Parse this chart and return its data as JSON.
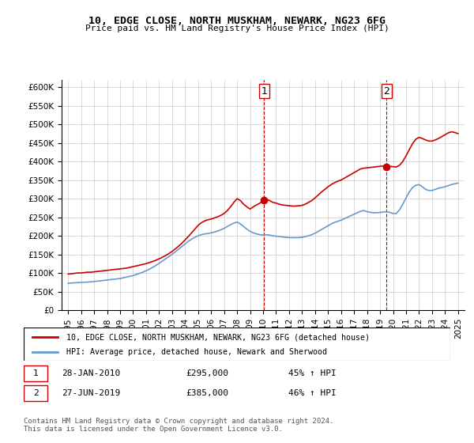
{
  "title": "10, EDGE CLOSE, NORTH MUSKHAM, NEWARK, NG23 6FG",
  "subtitle": "Price paid vs. HM Land Registry's House Price Index (HPI)",
  "legend_line1": "10, EDGE CLOSE, NORTH MUSKHAM, NEWARK, NG23 6FG (detached house)",
  "legend_line2": "HPI: Average price, detached house, Newark and Sherwood",
  "annotation1_label": "1",
  "annotation1_date": "28-JAN-2010",
  "annotation1_price": "£295,000",
  "annotation1_pct": "45% ↑ HPI",
  "annotation2_label": "2",
  "annotation2_date": "27-JUN-2019",
  "annotation2_price": "£385,000",
  "annotation2_pct": "46% ↑ HPI",
  "footer": "Contains HM Land Registry data © Crown copyright and database right 2024.\nThis data is licensed under the Open Government Licence v3.0.",
  "vline1_x": 2010.08,
  "vline2_x": 2019.5,
  "marker1_x": 2010.08,
  "marker1_y": 295000,
  "marker2_x": 2019.5,
  "marker2_y": 385000,
  "xlim": [
    1994.5,
    2025.5
  ],
  "ylim": [
    0,
    620000
  ],
  "yticks": [
    0,
    50000,
    100000,
    150000,
    200000,
    250000,
    300000,
    350000,
    400000,
    450000,
    500000,
    550000,
    600000
  ],
  "ytick_labels": [
    "£0",
    "£50K",
    "£100K",
    "£150K",
    "£200K",
    "£250K",
    "£300K",
    "£350K",
    "£400K",
    "£450K",
    "£500K",
    "£550K",
    "£600K"
  ],
  "xticks": [
    1995,
    1996,
    1997,
    1998,
    1999,
    2000,
    2001,
    2002,
    2003,
    2004,
    2005,
    2006,
    2007,
    2008,
    2009,
    2010,
    2011,
    2012,
    2013,
    2014,
    2015,
    2016,
    2017,
    2018,
    2019,
    2020,
    2021,
    2022,
    2023,
    2024,
    2025
  ],
  "red_color": "#cc0000",
  "blue_color": "#6699cc",
  "vline_color": "#cc0000",
  "background_color": "#ffffff",
  "grid_color": "#cccccc",
  "red_x": [
    1995.0,
    1995.25,
    1995.5,
    1995.75,
    1996.0,
    1996.25,
    1996.5,
    1996.75,
    1997.0,
    1997.25,
    1997.5,
    1997.75,
    1998.0,
    1998.25,
    1998.5,
    1998.75,
    1999.0,
    1999.25,
    1999.5,
    1999.75,
    2000.0,
    2000.25,
    2000.5,
    2000.75,
    2001.0,
    2001.25,
    2001.5,
    2001.75,
    2002.0,
    2002.25,
    2002.5,
    2002.75,
    2003.0,
    2003.25,
    2003.5,
    2003.75,
    2004.0,
    2004.25,
    2004.5,
    2004.75,
    2005.0,
    2005.25,
    2005.5,
    2005.75,
    2006.0,
    2006.25,
    2006.5,
    2006.75,
    2007.0,
    2007.25,
    2007.5,
    2007.75,
    2008.0,
    2008.25,
    2008.5,
    2008.75,
    2009.0,
    2009.25,
    2009.5,
    2009.75,
    2010.0,
    2010.25,
    2010.5,
    2010.75,
    2011.0,
    2011.25,
    2011.5,
    2011.75,
    2012.0,
    2012.25,
    2012.5,
    2012.75,
    2013.0,
    2013.25,
    2013.5,
    2013.75,
    2014.0,
    2014.25,
    2014.5,
    2014.75,
    2015.0,
    2015.25,
    2015.5,
    2015.75,
    2016.0,
    2016.25,
    2016.5,
    2016.75,
    2017.0,
    2017.25,
    2017.5,
    2017.75,
    2018.0,
    2018.25,
    2018.5,
    2018.75,
    2019.0,
    2019.25,
    2019.5,
    2019.75,
    2020.0,
    2020.25,
    2020.5,
    2020.75,
    2021.0,
    2021.25,
    2021.5,
    2021.75,
    2022.0,
    2022.25,
    2022.5,
    2022.75,
    2023.0,
    2023.25,
    2023.5,
    2023.75,
    2024.0,
    2024.25,
    2024.5,
    2024.75,
    2025.0
  ],
  "red_y": [
    97000,
    98000,
    99000,
    100000,
    100000,
    101000,
    102000,
    102000,
    103000,
    104000,
    105000,
    106000,
    107000,
    108000,
    109000,
    110000,
    111000,
    112000,
    113000,
    115000,
    117000,
    119000,
    121000,
    123000,
    125000,
    128000,
    131000,
    134000,
    138000,
    142000,
    147000,
    152000,
    158000,
    165000,
    172000,
    180000,
    189000,
    198000,
    208000,
    218000,
    228000,
    235000,
    240000,
    243000,
    245000,
    248000,
    251000,
    255000,
    260000,
    268000,
    278000,
    290000,
    300000,
    295000,
    285000,
    278000,
    272000,
    278000,
    283000,
    288000,
    293000,
    298000,
    295000,
    290000,
    288000,
    285000,
    283000,
    282000,
    281000,
    280000,
    280000,
    281000,
    282000,
    285000,
    290000,
    295000,
    302000,
    310000,
    318000,
    325000,
    332000,
    338000,
    343000,
    347000,
    350000,
    355000,
    360000,
    365000,
    370000,
    375000,
    380000,
    382000,
    383000,
    384000,
    385000,
    386000,
    387000,
    388000,
    388000,
    387000,
    386000,
    385000,
    390000,
    400000,
    415000,
    432000,
    448000,
    460000,
    465000,
    462000,
    458000,
    455000,
    455000,
    458000,
    462000,
    467000,
    472000,
    477000,
    480000,
    478000,
    475000
  ],
  "blue_x": [
    1995.0,
    1995.25,
    1995.5,
    1995.75,
    1996.0,
    1996.25,
    1996.5,
    1996.75,
    1997.0,
    1997.25,
    1997.5,
    1997.75,
    1998.0,
    1998.25,
    1998.5,
    1998.75,
    1999.0,
    1999.25,
    1999.5,
    1999.75,
    2000.0,
    2000.25,
    2000.5,
    2000.75,
    2001.0,
    2001.25,
    2001.5,
    2001.75,
    2002.0,
    2002.25,
    2002.5,
    2002.75,
    2003.0,
    2003.25,
    2003.5,
    2003.75,
    2004.0,
    2004.25,
    2004.5,
    2004.75,
    2005.0,
    2005.25,
    2005.5,
    2005.75,
    2006.0,
    2006.25,
    2006.5,
    2006.75,
    2007.0,
    2007.25,
    2007.5,
    2007.75,
    2008.0,
    2008.25,
    2008.5,
    2008.75,
    2009.0,
    2009.25,
    2009.5,
    2009.75,
    2010.0,
    2010.25,
    2010.5,
    2010.75,
    2011.0,
    2011.25,
    2011.5,
    2011.75,
    2012.0,
    2012.25,
    2012.5,
    2012.75,
    2013.0,
    2013.25,
    2013.5,
    2013.75,
    2014.0,
    2014.25,
    2014.5,
    2014.75,
    2015.0,
    2015.25,
    2015.5,
    2015.75,
    2016.0,
    2016.25,
    2016.5,
    2016.75,
    2017.0,
    2017.25,
    2017.5,
    2017.75,
    2018.0,
    2018.25,
    2018.5,
    2018.75,
    2019.0,
    2019.25,
    2019.5,
    2019.75,
    2020.0,
    2020.25,
    2020.5,
    2020.75,
    2021.0,
    2021.25,
    2021.5,
    2021.75,
    2022.0,
    2022.25,
    2022.5,
    2022.75,
    2023.0,
    2023.25,
    2023.5,
    2023.75,
    2024.0,
    2024.25,
    2024.5,
    2024.75,
    2025.0
  ],
  "blue_y": [
    72000,
    73000,
    73500,
    74000,
    74500,
    75000,
    75500,
    76000,
    77000,
    78000,
    79000,
    80000,
    81000,
    82000,
    83000,
    84000,
    85000,
    87000,
    89000,
    91000,
    93000,
    96000,
    99000,
    102000,
    106000,
    110000,
    115000,
    120000,
    126000,
    132000,
    138000,
    144000,
    150000,
    157000,
    164000,
    171000,
    178000,
    185000,
    191000,
    196000,
    200000,
    203000,
    205000,
    206000,
    208000,
    210000,
    213000,
    216000,
    220000,
    225000,
    230000,
    234000,
    237000,
    232000,
    225000,
    218000,
    212000,
    208000,
    205000,
    203000,
    202000,
    203000,
    202000,
    200000,
    199000,
    198000,
    197000,
    196000,
    195000,
    195000,
    195000,
    195000,
    196000,
    198000,
    200000,
    203000,
    207000,
    212000,
    217000,
    222000,
    227000,
    232000,
    236000,
    239000,
    242000,
    246000,
    250000,
    254000,
    258000,
    262000,
    266000,
    268000,
    265000,
    263000,
    262000,
    262000,
    263000,
    264000,
    265000,
    263000,
    260000,
    260000,
    270000,
    285000,
    302000,
    318000,
    330000,
    336000,
    338000,
    332000,
    325000,
    322000,
    322000,
    325000,
    328000,
    330000,
    332000,
    335000,
    338000,
    340000,
    342000
  ]
}
